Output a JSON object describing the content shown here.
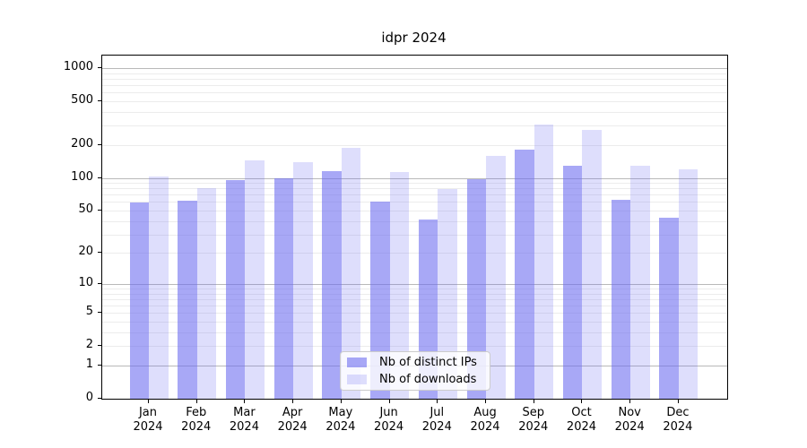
{
  "chart_data": {
    "type": "bar",
    "title": "idpr 2024",
    "categories": [
      "Jan",
      "Feb",
      "Mar",
      "Apr",
      "May",
      "Jun",
      "Jul",
      "Aug",
      "Sep",
      "Oct",
      "Nov",
      "Dec"
    ],
    "x_tick_second_line": "2024",
    "series": [
      {
        "name": "Nb of distinct IPs",
        "color": "rgba(105,105,240,0.58)",
        "values": [
          59,
          62,
          96,
          100,
          116,
          61,
          41,
          98,
          180,
          130,
          63,
          43
        ]
      },
      {
        "name": "Nb of downloads",
        "color": "rgba(105,105,240,0.22)",
        "values": [
          102,
          80,
          145,
          140,
          189,
          114,
          79,
          158,
          308,
          274,
          130,
          119
        ]
      }
    ],
    "xlabel": "",
    "ylabel": "",
    "yscale": "log1p",
    "ylim": [
      0,
      1300
    ],
    "yticks": [
      0,
      1,
      2,
      5,
      10,
      20,
      50,
      100,
      200,
      500,
      1000
    ],
    "grid": {
      "enabled": true,
      "major_color": "#b9b9b9",
      "minor_color": "#ececec"
    },
    "legend": {
      "position": "lower center",
      "entries": [
        "Nb of distinct IPs",
        "Nb of downloads"
      ]
    }
  }
}
